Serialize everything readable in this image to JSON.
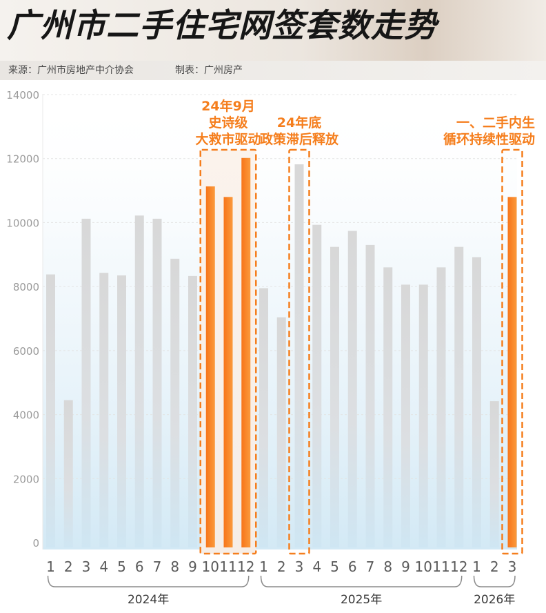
{
  "header": {
    "title": "广州市二手住宅网签套数走势",
    "source": "来源：广州市房地产中介协会",
    "maker": "制表：广州房产"
  },
  "colors": {
    "accent": "#f57e1d",
    "accent_light": "#f9a54f",
    "bar_gray": "#d5d5d5",
    "background_blue": "#d8ecf6"
  },
  "chart_data": {
    "type": "bar",
    "title": "广州市二手住宅网签套数走势",
    "xlabel": "",
    "ylabel": "",
    "ylim": [
      0,
      14000
    ],
    "yticks": [
      0,
      2000,
      4000,
      6000,
      8000,
      10000,
      12000,
      14000
    ],
    "grid": true,
    "categories": [
      "1",
      "2",
      "3",
      "4",
      "5",
      "6",
      "7",
      "8",
      "9",
      "10",
      "11",
      "12",
      "1",
      "2",
      "3",
      "4",
      "5",
      "6",
      "7",
      "8",
      "9",
      "10",
      "11",
      "12",
      "1",
      "2",
      "3"
    ],
    "values": [
      8380,
      4450,
      10120,
      8430,
      8350,
      10220,
      10120,
      8870,
      8330,
      11130,
      10800,
      12020,
      7950,
      7040,
      11820,
      9930,
      9240,
      9740,
      9300,
      8600,
      8060,
      8060,
      8600,
      9240,
      8920,
      4420,
      10800
    ],
    "highlighted_indices": [
      9,
      10,
      11,
      26
    ],
    "year_groups": [
      {
        "label": "2024年",
        "start": 0,
        "end": 11
      },
      {
        "label": "2025年",
        "start": 12,
        "end": 23
      },
      {
        "label": "2026年",
        "start": 24,
        "end": 26
      }
    ],
    "annotations": [
      {
        "lines": [
          "24年9月",
          "史诗级",
          "大救市驱动"
        ],
        "start": 9,
        "end": 11
      },
      {
        "lines": [
          "24年底",
          "政策滞后释放"
        ],
        "start": 14,
        "end": 14
      },
      {
        "lines": [
          "一、二手内生",
          "循环持续性驱动"
        ],
        "start": 26,
        "end": 26
      }
    ]
  }
}
